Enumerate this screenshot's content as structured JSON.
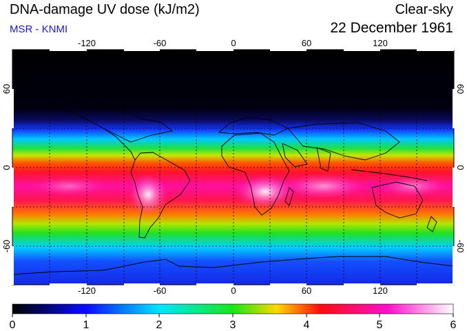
{
  "header": {
    "title": "DNA-damage UV dose (kJ/m2)",
    "source": "MSR - KNMI",
    "sky_condition": "Clear-sky",
    "date": "22 December 1961"
  },
  "map": {
    "projection": "equirectangular",
    "lon_ticks": [
      "-120",
      "-60",
      "0",
      "60",
      "120"
    ],
    "lat_ticks_left": [
      "60",
      "0",
      "-60"
    ],
    "lat_ticks_right": [
      "60",
      "0",
      "-60"
    ],
    "gridlines": "dotted every 30 degrees",
    "coastlines": true
  },
  "colorbar": {
    "ticks": [
      "0",
      "1",
      "2",
      "3",
      "4",
      "5",
      "6"
    ],
    "colors": [
      "#000000",
      "#0a0aff",
      "#00e6ff",
      "#19e619",
      "#ffd700",
      "#ff0a14",
      "#ff10c8",
      "#ffffff"
    ]
  },
  "colors": {
    "subtitle": "#1a14e6",
    "polar_night": "#000000",
    "low_dose": "#1e3cff",
    "mid_dose": "#22e022",
    "high_dose": "#ff1a1a",
    "max_dose": "#ff20c8"
  }
}
